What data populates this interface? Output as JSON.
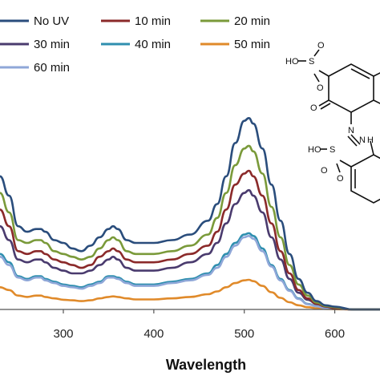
{
  "chart_data": {
    "type": "line",
    "xlabel": "Wavelength",
    "ylabel": "",
    "xlim": [
      230,
      650
    ],
    "ylim": [
      0,
      1.0
    ],
    "x_ticks": [
      300,
      400,
      500,
      600
    ],
    "grid": false,
    "legend_position": "top-left",
    "x": [
      230,
      240,
      250,
      260,
      270,
      275,
      280,
      290,
      300,
      310,
      320,
      330,
      340,
      350,
      355,
      360,
      370,
      380,
      400,
      420,
      440,
      460,
      470,
      480,
      490,
      500,
      505,
      510,
      520,
      530,
      540,
      550,
      560,
      570,
      580,
      590,
      600,
      620,
      650
    ],
    "series": [
      {
        "name": "No UV",
        "color": "#2a4d7c",
        "values": [
          0.48,
          0.41,
          0.3,
          0.28,
          0.29,
          0.29,
          0.28,
          0.25,
          0.24,
          0.22,
          0.21,
          0.23,
          0.26,
          0.29,
          0.3,
          0.29,
          0.25,
          0.24,
          0.24,
          0.25,
          0.27,
          0.32,
          0.38,
          0.48,
          0.6,
          0.68,
          0.69,
          0.67,
          0.58,
          0.45,
          0.32,
          0.2,
          0.11,
          0.06,
          0.03,
          0.015,
          0.01,
          0.0,
          0.0
        ]
      },
      {
        "name": "10 min",
        "color": "#8b2a2a",
        "values": [
          0.36,
          0.3,
          0.21,
          0.2,
          0.21,
          0.21,
          0.2,
          0.18,
          0.17,
          0.16,
          0.15,
          0.16,
          0.19,
          0.21,
          0.22,
          0.21,
          0.18,
          0.17,
          0.17,
          0.18,
          0.2,
          0.23,
          0.28,
          0.36,
          0.45,
          0.49,
          0.5,
          0.48,
          0.41,
          0.31,
          0.21,
          0.13,
          0.07,
          0.04,
          0.02,
          0.01,
          0.005,
          0.0,
          0.0
        ]
      },
      {
        "name": "20 min",
        "color": "#7a9a3a",
        "values": [
          0.42,
          0.35,
          0.25,
          0.24,
          0.25,
          0.25,
          0.24,
          0.21,
          0.2,
          0.19,
          0.18,
          0.19,
          0.22,
          0.25,
          0.26,
          0.25,
          0.21,
          0.2,
          0.2,
          0.21,
          0.23,
          0.27,
          0.33,
          0.42,
          0.52,
          0.58,
          0.59,
          0.57,
          0.49,
          0.37,
          0.26,
          0.16,
          0.09,
          0.05,
          0.025,
          0.012,
          0.008,
          0.0,
          0.0
        ]
      },
      {
        "name": "30 min",
        "color": "#4a3b6e",
        "values": [
          0.3,
          0.25,
          0.18,
          0.17,
          0.18,
          0.18,
          0.17,
          0.15,
          0.14,
          0.13,
          0.13,
          0.14,
          0.16,
          0.18,
          0.19,
          0.18,
          0.15,
          0.14,
          0.14,
          0.15,
          0.17,
          0.2,
          0.24,
          0.31,
          0.38,
          0.42,
          0.43,
          0.41,
          0.35,
          0.26,
          0.18,
          0.11,
          0.06,
          0.035,
          0.02,
          0.01,
          0.005,
          0.0,
          0.0
        ]
      },
      {
        "name": "40 min",
        "color": "#2f8faf",
        "values": [
          0.2,
          0.17,
          0.12,
          0.11,
          0.12,
          0.12,
          0.11,
          0.1,
          0.09,
          0.085,
          0.08,
          0.09,
          0.1,
          0.12,
          0.12,
          0.115,
          0.1,
          0.09,
          0.09,
          0.1,
          0.11,
          0.13,
          0.16,
          0.2,
          0.24,
          0.27,
          0.275,
          0.265,
          0.22,
          0.16,
          0.11,
          0.07,
          0.04,
          0.02,
          0.012,
          0.006,
          0.003,
          0.0,
          0.0
        ]
      },
      {
        "name": "50 min",
        "color": "#e08a2a",
        "values": [
          0.08,
          0.07,
          0.05,
          0.045,
          0.05,
          0.05,
          0.045,
          0.04,
          0.035,
          0.033,
          0.03,
          0.033,
          0.04,
          0.045,
          0.047,
          0.045,
          0.04,
          0.036,
          0.036,
          0.04,
          0.045,
          0.055,
          0.065,
          0.08,
          0.095,
          0.105,
          0.107,
          0.102,
          0.085,
          0.062,
          0.042,
          0.026,
          0.015,
          0.008,
          0.004,
          0.002,
          0.001,
          0.0,
          0.0
        ]
      },
      {
        "name": "60 min",
        "color": "#8fa7d8",
        "values": [
          0.19,
          0.16,
          0.115,
          0.105,
          0.115,
          0.115,
          0.105,
          0.095,
          0.085,
          0.08,
          0.075,
          0.085,
          0.095,
          0.115,
          0.115,
          0.11,
          0.095,
          0.085,
          0.085,
          0.095,
          0.105,
          0.125,
          0.15,
          0.19,
          0.23,
          0.26,
          0.265,
          0.255,
          0.21,
          0.155,
          0.105,
          0.067,
          0.038,
          0.019,
          0.011,
          0.005,
          0.003,
          0.0,
          0.0
        ]
      }
    ]
  },
  "molecule": {
    "labels": [
      "HO",
      "S",
      "O",
      "O",
      "O",
      "N",
      "N",
      "H",
      "HO",
      "S",
      "O",
      "O"
    ]
  }
}
